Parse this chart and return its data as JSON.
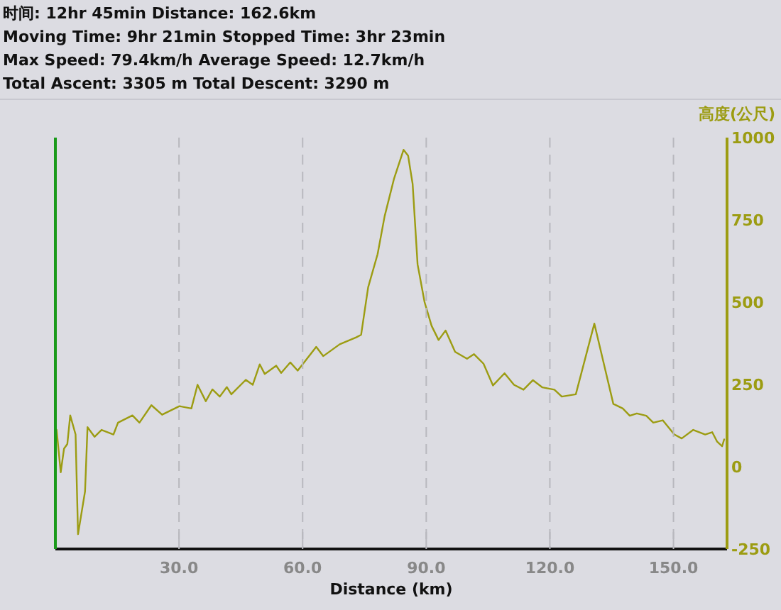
{
  "chart_data": {
    "type": "line",
    "xlabel": "Distance (km)",
    "ylabel": "高度(公尺)",
    "annotations": [
      "时间: 12hr 45min  Distance: 162.6km",
      "Moving Time: 9hr 21min  Stopped Time: 3hr 23min",
      "Max Speed: 79.4km/h  Average Speed: 12.7km/h",
      "Total Ascent: 3305 m  Total Descent: 3290 m"
    ],
    "x": [
      0.3,
      1.3,
      2.1,
      2.9,
      3.6,
      4.9,
      5.5,
      7.2,
      7.8,
      9.5,
      11.2,
      14.1,
      15.2,
      18.7,
      20.4,
      23.3,
      25.9,
      30.1,
      33.0,
      34.5,
      36.5,
      38.1,
      39.9,
      41.6,
      42.7,
      46.2,
      47.9,
      49.6,
      50.8,
      53.6,
      54.8,
      57.0,
      58.8,
      63.3,
      65.0,
      69.0,
      73.0,
      74.2,
      75.9,
      78.2,
      79.9,
      82.2,
      84.5,
      85.6,
      86.7,
      87.9,
      89.6,
      91.3,
      93.0,
      94.7,
      97.0,
      99.9,
      101.6,
      103.9,
      106.2,
      109.0,
      111.3,
      113.6,
      115.9,
      118.2,
      121.1,
      122.9,
      126.3,
      130.8,
      133.1,
      135.4,
      137.7,
      139.4,
      141.1,
      143.4,
      145.1,
      147.4,
      150.2,
      152.0,
      154.8,
      157.7,
      159.4,
      160.6,
      161.8,
      162.3
    ],
    "series": [
      {
        "color": "#9c9c12",
        "values": [
          112,
          -17,
          55,
          69,
          156,
          98,
          -205,
          -75,
          120,
          91,
          112,
          98,
          134,
          156,
          134,
          187,
          158,
          184,
          177,
          249,
          199,
          235,
          213,
          242,
          220,
          264,
          249,
          311,
          282,
          307,
          285,
          317,
          292,
          364,
          336,
          372,
          393,
          401,
          545,
          646,
          761,
          876,
          963,
          945,
          859,
          615,
          500,
          428,
          385,
          414,
          349,
          328,
          342,
          313,
          247,
          284,
          249,
          234,
          263,
          241,
          234,
          213,
          220,
          435,
          313,
          191,
          177,
          155,
          162,
          155,
          134,
          141,
          98,
          86,
          112,
          98,
          105,
          76,
          62,
          83
        ]
      }
    ],
    "xlim": [
      0,
      163
    ],
    "xticks": [
      {
        "value": 30,
        "label": "30.0"
      },
      {
        "value": 60,
        "label": "60.0"
      },
      {
        "value": 90,
        "label": "90.0"
      },
      {
        "value": 120,
        "label": "120.0"
      },
      {
        "value": 150,
        "label": "150.0"
      }
    ],
    "ylim": [
      -250,
      1000
    ],
    "yticks": [
      -250,
      0,
      250,
      500,
      750,
      1000
    ],
    "grid": "x",
    "line_style": "solid",
    "marker": "none"
  }
}
